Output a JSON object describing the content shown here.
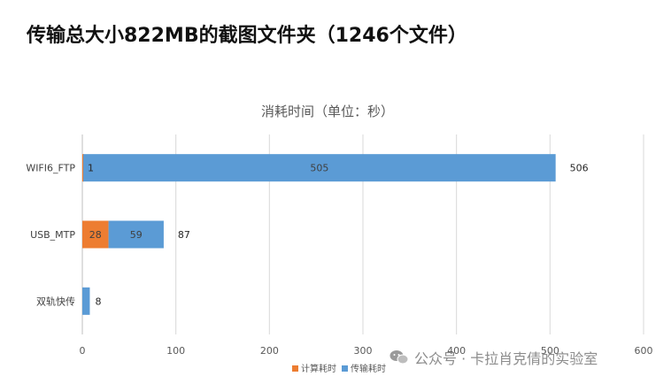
{
  "heading": "传输总大小822MB的截图文件夹（1246个文件）",
  "watermark": "公众号 · 卡拉肖克倩的实验室",
  "chart_data": {
    "type": "bar",
    "orientation": "horizontal",
    "stacked": true,
    "title": "消耗时间（单位：秒）",
    "categories": [
      "WIFI6_FTP",
      "USB_MTP",
      "双轨快传"
    ],
    "series": [
      {
        "name": "计算耗时",
        "color": "#ed7d31",
        "values": [
          1,
          28,
          0
        ]
      },
      {
        "name": "传输耗时",
        "color": "#5b9bd5",
        "values": [
          505,
          59,
          8
        ]
      }
    ],
    "segment_labels": [
      [
        "1",
        "28",
        ""
      ],
      [
        "505",
        "59",
        "8"
      ]
    ],
    "totals": [
      "506",
      "87",
      ""
    ],
    "xlim": [
      0,
      600
    ],
    "xticks": [
      "0",
      "100",
      "200",
      "300",
      "400",
      "500",
      "600"
    ],
    "grid": true,
    "legend_position": "bottom"
  }
}
